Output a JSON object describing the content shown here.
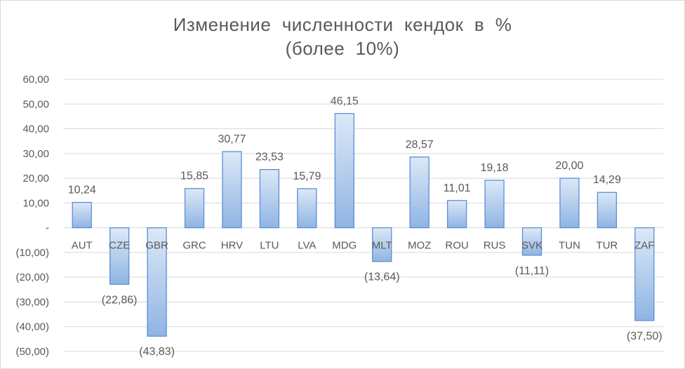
{
  "chart_data": {
    "type": "bar",
    "title_line1": "Изменение  численности  кендок  в  %",
    "title_line2": "(более  10%)",
    "categories": [
      "AUT",
      "CZE",
      "GBR",
      "GRC",
      "HRV",
      "LTU",
      "LVA",
      "MDG",
      "MLT",
      "MOZ",
      "ROU",
      "RUS",
      "SVK",
      "TUN",
      "TUR",
      "ZAF"
    ],
    "values": [
      10.24,
      -22.86,
      -43.83,
      15.85,
      30.77,
      23.53,
      15.79,
      46.15,
      -13.64,
      28.57,
      11.01,
      19.18,
      -11.11,
      20.0,
      14.29,
      -37.5
    ],
    "data_labels": [
      "10,24",
      "(22,86)",
      "(43,83)",
      "15,85",
      "30,77",
      "23,53",
      "15,79",
      "46,15",
      "(13,64)",
      "28,57",
      "11,01",
      "19,18",
      "(11,11)",
      "20,00",
      "14,29",
      "(37,50)"
    ],
    "y_ticks": [
      60,
      50,
      40,
      30,
      20,
      10,
      0,
      -10,
      -20,
      -30,
      -40,
      -50
    ],
    "y_tick_labels": [
      "60,00",
      "50,00",
      "40,00",
      "30,00",
      "20,00",
      "10,00",
      "-",
      "(10,00)",
      "(20,00)",
      "(30,00)",
      "(40,00)",
      "(50,00)"
    ],
    "ylim": [
      -50,
      60
    ],
    "grid": true,
    "legend": "none",
    "colors": {
      "bar_top": "#dce9f7",
      "bar_bottom": "#8fb4e3",
      "bar_stroke": "#5b8fd6",
      "grid": "#d9d9d9",
      "text": "#595959"
    }
  }
}
